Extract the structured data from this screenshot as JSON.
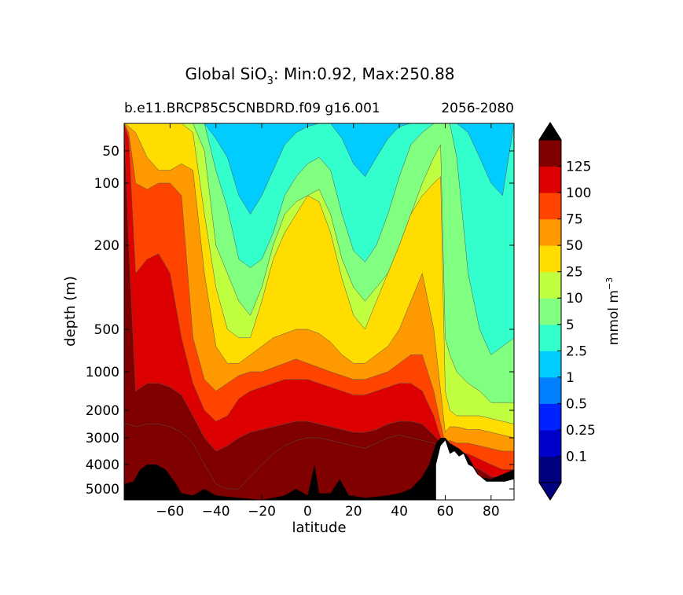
{
  "chart_data": {
    "type": "heatmap",
    "title_prefix": "Global SiO",
    "title_sub": "3",
    "title_suffix": ": Min:0.92, Max:250.88",
    "subtitle_left": "b.e11.BRCP85C5CNBDRD.f09 g16.001",
    "subtitle_right": "2056-2080",
    "xlabel": "latitude",
    "ylabel": "depth (m)",
    "xlim": [
      -80,
      90
    ],
    "ylim_depth": [
      5,
      5500
    ],
    "xticks": [
      -60,
      -40,
      -20,
      0,
      20,
      40,
      60,
      80
    ],
    "xtick_labels": [
      "−60",
      "−40",
      "−20",
      "0",
      "20",
      "40",
      "60",
      "80"
    ],
    "yticks": [
      50,
      100,
      200,
      500,
      1000,
      2000,
      3000,
      4000,
      5000
    ],
    "ytick_labels": [
      "50",
      "100",
      "200",
      "500",
      "1000",
      "2000",
      "3000",
      "4000",
      "5000"
    ],
    "colorbar": {
      "label": "mmol m",
      "label_sup": "−3",
      "levels": [
        "0.1",
        "0.25",
        "0.5",
        "1",
        "2.5",
        "5",
        "10",
        "25",
        "50",
        "75",
        "100",
        "125"
      ],
      "colors": [
        "#00007f",
        "#0000cc",
        "#0022ff",
        "#0080ff",
        "#00ccff",
        "#33ffcc",
        "#80ff80",
        "#bfff40",
        "#ffdd00",
        "#ff9900",
        "#ff4400",
        "#dd0000",
        "#800000"
      ],
      "under_color": "#000080",
      "over_color": "#000000"
    },
    "field_colors": [
      "#00ccff",
      "#33ffcc",
      "#80ff80",
      "#bfff40",
      "#ffdd00",
      "#ff9900",
      "#ff4400",
      "#dd0000",
      "#800000"
    ],
    "missing_color": "#000000"
  }
}
